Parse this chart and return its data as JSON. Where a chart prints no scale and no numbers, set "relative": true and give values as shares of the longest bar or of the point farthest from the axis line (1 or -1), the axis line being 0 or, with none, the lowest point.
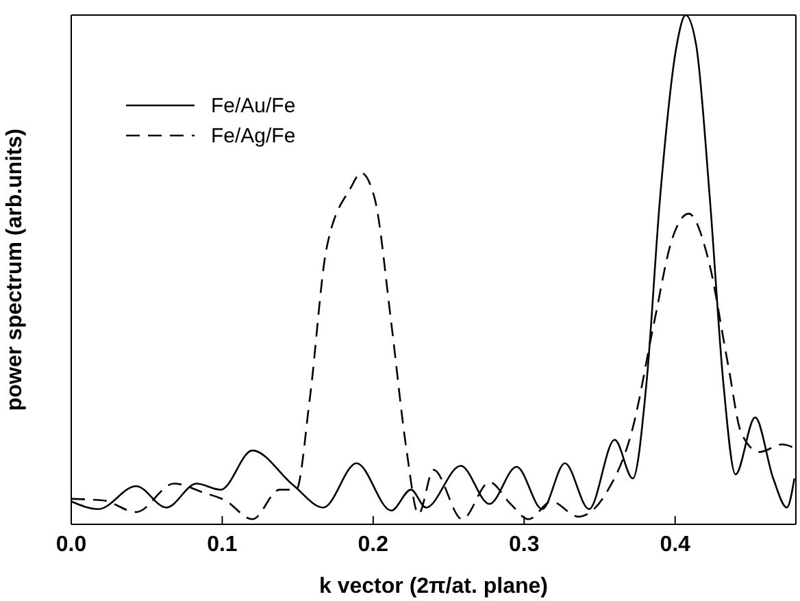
{
  "chart_data": {
    "type": "line",
    "xlabel": "k vector (2π/at. plane)",
    "ylabel": "power spectrum (arb.units)",
    "relative": true,
    "xlim": [
      0,
      0.48
    ],
    "xticks": [
      {
        "value": 0,
        "label": "0.0"
      },
      0.1,
      0.2,
      0.3,
      0.4
    ],
    "grid": false,
    "legend": "top left",
    "marker": "none",
    "series": [
      {
        "name": "Fe/Au/Fe",
        "color": "#000000",
        "line_style": "solid",
        "x": [
          0,
          0.018,
          0.043,
          0.063,
          0.083,
          0.099,
          0.12,
          0.147,
          0.167,
          0.189,
          0.212,
          0.225,
          0.235,
          0.258,
          0.277,
          0.295,
          0.312,
          0.327,
          0.343,
          0.36,
          0.372,
          0.381,
          0.39,
          0.401,
          0.407,
          0.414,
          0.423,
          0.432,
          0.44,
          0.453,
          0.465,
          0.474,
          0.479
        ],
        "values": [
          0.045,
          0.03,
          0.075,
          0.033,
          0.08,
          0.068,
          0.145,
          0.077,
          0.033,
          0.12,
          0.027,
          0.068,
          0.033,
          0.115,
          0.04,
          0.113,
          0.03,
          0.12,
          0.03,
          0.166,
          0.09,
          0.276,
          0.64,
          0.94,
          1,
          0.94,
          0.64,
          0.276,
          0.098,
          0.21,
          0.09,
          0.033,
          0.09
        ]
      },
      {
        "name": "Fe/Ag/Fe",
        "color": "#000000",
        "line_style": "dashed",
        "x": [
          0,
          0.021,
          0.043,
          0.068,
          0.088,
          0.102,
          0.12,
          0.138,
          0.149,
          0.158,
          0.169,
          0.185,
          0.192,
          0.201,
          0.212,
          0.222,
          0.23,
          0.24,
          0.259,
          0.277,
          0.291,
          0.303,
          0.318,
          0.336,
          0.354,
          0.372,
          0.386,
          0.398,
          0.409,
          0.422,
          0.435,
          0.444,
          0.456,
          0.471,
          0.479
        ],
        "values": [
          0.05,
          0.047,
          0.024,
          0.08,
          0.062,
          0.047,
          0.01,
          0.068,
          0.068,
          0.246,
          0.54,
          0.66,
          0.69,
          0.64,
          0.395,
          0.148,
          0.02,
          0.107,
          0.01,
          0.083,
          0.04,
          0.01,
          0.045,
          0.015,
          0.06,
          0.19,
          0.395,
          0.56,
          0.61,
          0.52,
          0.315,
          0.178,
          0.142,
          0.157,
          0.15
        ]
      }
    ]
  }
}
